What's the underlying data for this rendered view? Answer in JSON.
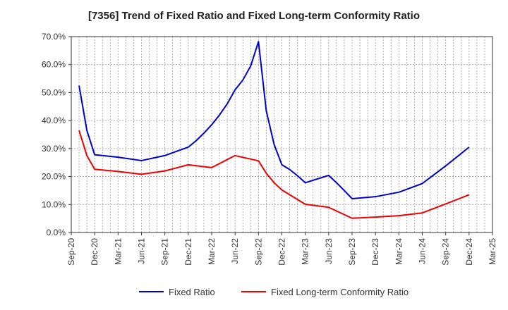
{
  "chart_data": {
    "type": "line",
    "title": "[7356]  Trend of Fixed Ratio and Fixed Long-term Conformity Ratio",
    "xlabel": "",
    "ylabel": "",
    "x_ticks": [
      "Sep-20",
      "Dec-20",
      "Mar-21",
      "Jun-21",
      "Sep-21",
      "Dec-21",
      "Mar-22",
      "Jun-22",
      "Sep-22",
      "Dec-22",
      "Mar-23",
      "Jun-23",
      "Sep-23",
      "Dec-23",
      "Mar-24",
      "Jun-24",
      "Sep-24",
      "Dec-24",
      "Mar-25"
    ],
    "y_ticks": [
      "0.0%",
      "10.0%",
      "20.0%",
      "30.0%",
      "40.0%",
      "50.0%",
      "60.0%",
      "70.0%"
    ],
    "ylim": [
      0,
      70
    ],
    "grid": true,
    "legend_position": "bottom",
    "series": [
      {
        "name": "Fixed Ratio",
        "color": "#0000cc",
        "points": [
          {
            "x": "Oct-20",
            "y": 52.5
          },
          {
            "x": "Nov-20",
            "y": 36.5
          },
          {
            "x": "Dec-20",
            "y": 27.8
          },
          {
            "x": "Mar-21",
            "y": 26.9
          },
          {
            "x": "Jun-21",
            "y": 25.7
          },
          {
            "x": "Sep-21",
            "y": 27.5
          },
          {
            "x": "Dec-21",
            "y": 30.5
          },
          {
            "x": "Jan-22",
            "y": 32.8
          },
          {
            "x": "Feb-22",
            "y": 35.5
          },
          {
            "x": "Mar-22",
            "y": 38.5
          },
          {
            "x": "Apr-22",
            "y": 42.0
          },
          {
            "x": "May-22",
            "y": 46.0
          },
          {
            "x": "Jun-22",
            "y": 51.0
          },
          {
            "x": "Jul-22",
            "y": 54.5
          },
          {
            "x": "Aug-22",
            "y": 59.5
          },
          {
            "x": "Sep-22",
            "y": 68.2
          },
          {
            "x": "Oct-22",
            "y": 43.5
          },
          {
            "x": "Nov-22",
            "y": 31.5
          },
          {
            "x": "Dec-22",
            "y": 24.2
          },
          {
            "x": "Jan-23",
            "y": 22.5
          },
          {
            "x": "Feb-23",
            "y": 20.3
          },
          {
            "x": "Mar-23",
            "y": 17.8
          },
          {
            "x": "Jun-23",
            "y": 20.4
          },
          {
            "x": "Jul-23",
            "y": 17.8
          },
          {
            "x": "Aug-23",
            "y": 15.0
          },
          {
            "x": "Sep-23",
            "y": 12.1
          },
          {
            "x": "Dec-23",
            "y": 12.8
          },
          {
            "x": "Mar-24",
            "y": 14.4
          },
          {
            "x": "Jun-24",
            "y": 17.5
          },
          {
            "x": "Sep-24",
            "y": 23.8
          },
          {
            "x": "Dec-24",
            "y": 30.5
          }
        ]
      },
      {
        "name": "Fixed Long-term Conformity Ratio",
        "color": "#ee0000",
        "points": [
          {
            "x": "Oct-20",
            "y": 36.5
          },
          {
            "x": "Nov-20",
            "y": 27.5
          },
          {
            "x": "Dec-20",
            "y": 22.6
          },
          {
            "x": "Mar-21",
            "y": 21.8
          },
          {
            "x": "Jun-21",
            "y": 20.8
          },
          {
            "x": "Sep-21",
            "y": 22.0
          },
          {
            "x": "Dec-21",
            "y": 24.2
          },
          {
            "x": "Mar-22",
            "y": 23.2
          },
          {
            "x": "Jun-22",
            "y": 27.5
          },
          {
            "x": "Sep-22",
            "y": 25.6
          },
          {
            "x": "Oct-22",
            "y": 21.2
          },
          {
            "x": "Nov-22",
            "y": 17.8
          },
          {
            "x": "Dec-22",
            "y": 15.2
          },
          {
            "x": "Mar-23",
            "y": 10.1
          },
          {
            "x": "Jun-23",
            "y": 9.0
          },
          {
            "x": "Sep-23",
            "y": 5.1
          },
          {
            "x": "Dec-23",
            "y": 5.5
          },
          {
            "x": "Mar-24",
            "y": 6.0
          },
          {
            "x": "Jun-24",
            "y": 7.0
          },
          {
            "x": "Sep-24",
            "y": 10.2
          },
          {
            "x": "Dec-24",
            "y": 13.5
          }
        ]
      }
    ]
  }
}
